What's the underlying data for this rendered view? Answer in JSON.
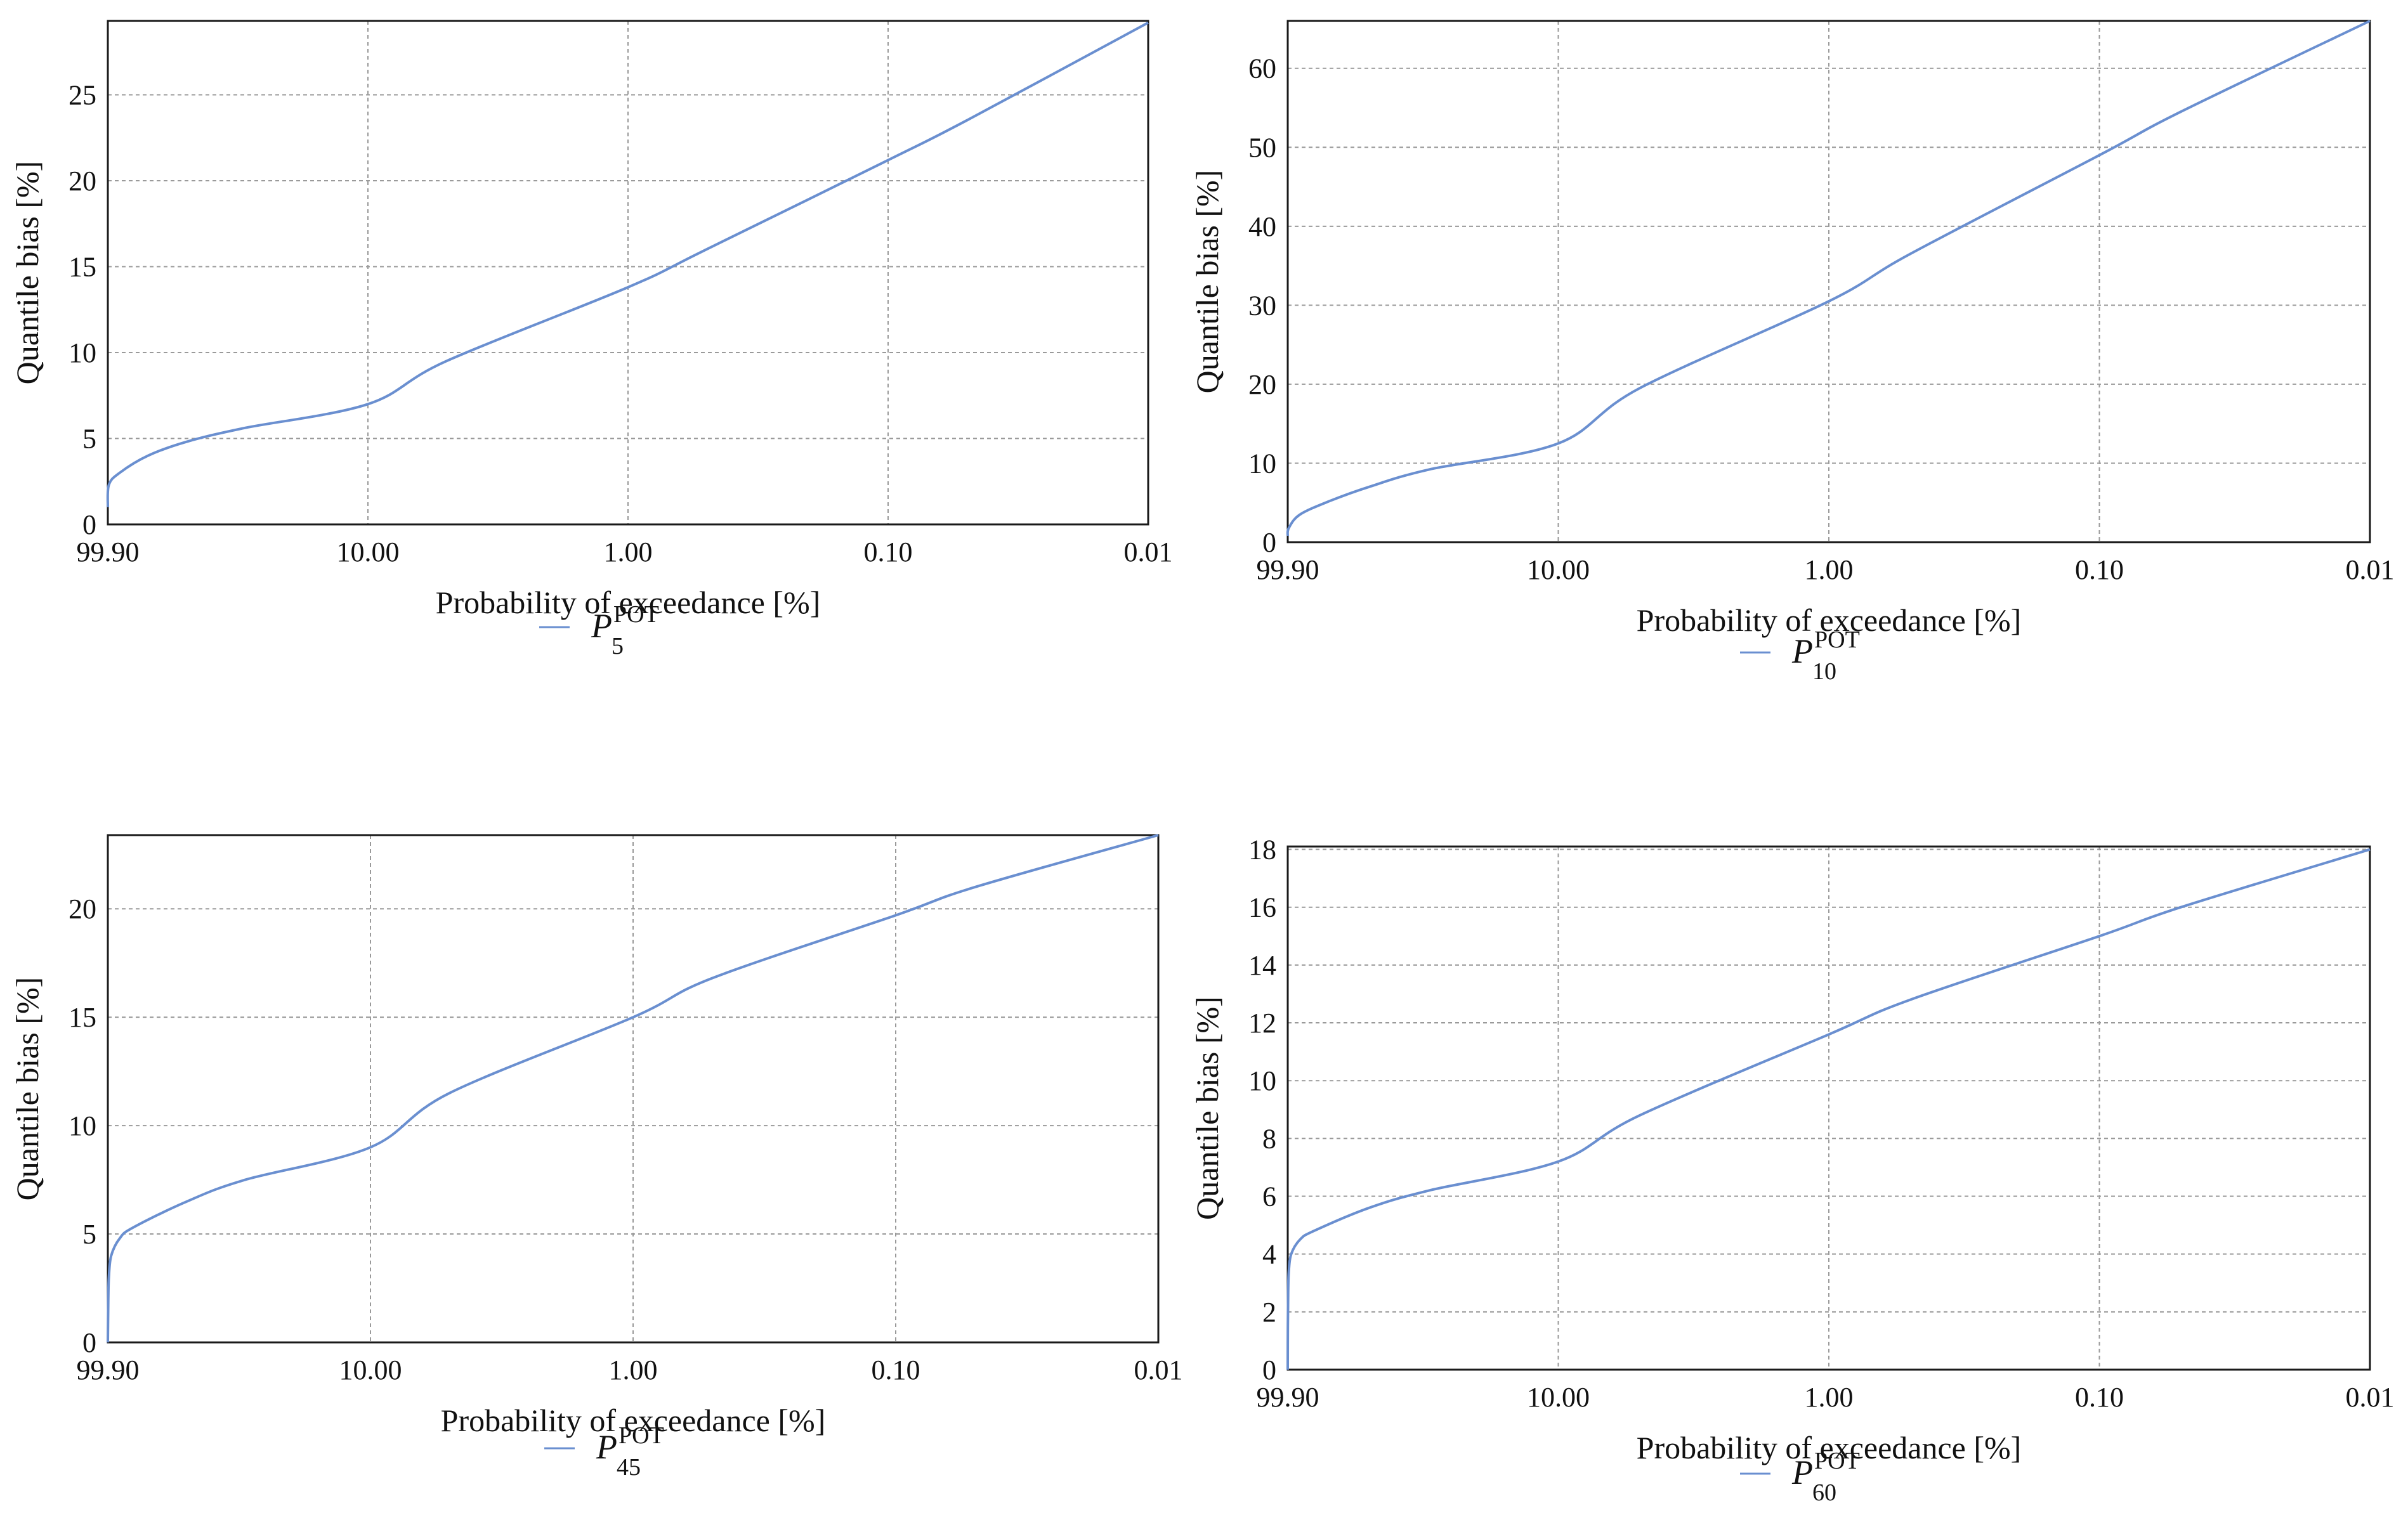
{
  "chart_data": [
    {
      "type": "line",
      "panel": "top-left",
      "xlabel": "Probability of exceedance [%]",
      "ylabel": "Quantile bias [%]",
      "x_tick_labels": [
        "99.90",
        "10.00",
        "1.00",
        "0.10",
        "0.01"
      ],
      "ylim": [
        0,
        29.3
      ],
      "y_ticks": [
        0,
        5,
        10,
        15,
        20,
        25
      ],
      "series": [
        {
          "name": "P_5^POT",
          "legend_base": "P",
          "legend_sub": "5",
          "legend_sup": "POT",
          "color": "#6a8fd0",
          "x_exceedance_pct": [
            99.9,
            99.0,
            90.0,
            70.0,
            50.0,
            30.0,
            10.0,
            5.0,
            1.0,
            0.5,
            0.1,
            0.05,
            0.01
          ],
          "values": [
            1.0,
            2.3,
            3.0,
            4.0,
            4.8,
            5.6,
            7.0,
            9.5,
            13.8,
            16.0,
            21.2,
            23.5,
            29.2
          ]
        }
      ]
    },
    {
      "type": "line",
      "panel": "top-right",
      "xlabel": "Probability of exceedance [%]",
      "ylabel": "Quantile bias [%]",
      "x_tick_labels": [
        "99.90",
        "10.00",
        "1.00",
        "0.10",
        "0.01"
      ],
      "ylim": [
        0,
        66
      ],
      "y_ticks": [
        0,
        10,
        20,
        30,
        40,
        50,
        60
      ],
      "series": [
        {
          "name": "P_10^POT",
          "legend_base": "P",
          "legend_sub": "10",
          "legend_sup": "POT",
          "color": "#6a8fd0",
          "x_exceedance_pct": [
            99.9,
            99.0,
            90.0,
            70.0,
            50.0,
            30.0,
            10.0,
            5.0,
            1.0,
            0.5,
            0.1,
            0.05,
            0.01
          ],
          "values": [
            0.8,
            1.8,
            3.5,
            5.2,
            7.0,
            9.2,
            12.5,
            19.5,
            30.5,
            36.5,
            49.0,
            54.5,
            66.0
          ]
        }
      ]
    },
    {
      "type": "line",
      "panel": "bottom-left",
      "xlabel": "Probability of exceedance [%]",
      "ylabel": "Quantile bias [%]",
      "x_tick_labels": [
        "99.90",
        "10.00",
        "1.00",
        "0.10",
        "0.01"
      ],
      "ylim": [
        0,
        23.4
      ],
      "y_ticks": [
        0,
        5,
        10,
        15,
        20
      ],
      "series": [
        {
          "name": "P_45^POT",
          "legend_base": "P",
          "legend_sub": "45",
          "legend_sup": "POT",
          "color": "#6a8fd0",
          "x_exceedance_pct": [
            99.9,
            99.5,
            99.0,
            97.0,
            90.0,
            80.0,
            50.0,
            30.0,
            10.0,
            5.0,
            1.0,
            0.5,
            0.1,
            0.05,
            0.01
          ],
          "values": [
            0.0,
            2.0,
            3.0,
            4.0,
            4.8,
            5.3,
            6.5,
            7.5,
            9.0,
            11.5,
            15.0,
            16.8,
            19.7,
            21.0,
            23.4
          ]
        }
      ]
    },
    {
      "type": "line",
      "panel": "bottom-right",
      "xlabel": "Probability of exceedance [%]",
      "ylabel": "Quantile bias [%]",
      "x_tick_labels": [
        "99.90",
        "10.00",
        "1.00",
        "0.10",
        "0.01"
      ],
      "ylim": [
        0,
        18.1
      ],
      "y_ticks": [
        0,
        2,
        4,
        6,
        8,
        10,
        12,
        14,
        16,
        18
      ],
      "series": [
        {
          "name": "P_60^POT",
          "legend_base": "P",
          "legend_sub": "60",
          "legend_sup": "POT",
          "color": "#6a8fd0",
          "x_exceedance_pct": [
            99.9,
            99.8,
            99.5,
            99.0,
            97.0,
            90.0,
            80.0,
            50.0,
            30.0,
            10.0,
            5.0,
            1.0,
            0.5,
            0.1,
            0.05,
            0.01
          ],
          "values": [
            0.0,
            1.5,
            2.7,
            3.4,
            4.0,
            4.5,
            4.8,
            5.6,
            6.2,
            7.2,
            8.8,
            11.6,
            12.8,
            15.0,
            16.0,
            18.0
          ]
        }
      ]
    }
  ]
}
